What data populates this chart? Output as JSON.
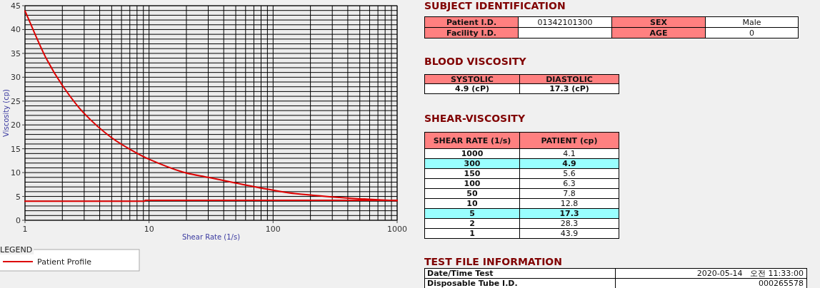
{
  "chart_data": [
    {
      "type": "line",
      "xlabel": "Shear Rate (1/s)",
      "ylabel": "Viscosity (cp)",
      "log": "x",
      "xlim": [
        1,
        1000
      ],
      "xticks": [
        1,
        10,
        100,
        1000
      ],
      "ylim": [
        0,
        45
      ],
      "yticks": [
        0,
        5,
        10,
        15,
        20,
        25,
        30,
        35,
        40,
        45
      ],
      "grid": true,
      "legend": "bottom left",
      "legend_title": "LEGEND",
      "series": [
        {
          "name": "Patient Profile",
          "color": "#dd0000",
          "x": [
            1,
            1.5,
            2,
            3,
            5,
            7,
            10,
            20,
            30,
            50,
            100,
            150,
            300,
            500,
            1000
          ],
          "values": [
            43.9,
            33.7,
            28.3,
            22.4,
            17.3,
            14.9,
            12.8,
            9.9,
            9.0,
            7.8,
            6.3,
            5.6,
            4.9,
            4.5,
            4.1
          ]
        },
        {
          "color": "#dd0000",
          "x": [
            1,
            9.2,
            9.3,
            1000
          ],
          "values": [
            4.0,
            4.0,
            4.2,
            4.2
          ]
        }
      ]
    },
    {
      "type": "other",
      "title": "SUBJECT IDENTIFICATION",
      "annotations": [
        "Patient I.D.",
        "01342101300",
        "SEX",
        "Male",
        "Facility I.D.",
        "AGE",
        "0"
      ]
    },
    {
      "type": "other",
      "title": "BLOOD VISCOSITY",
      "annotations": [
        "SYSTOLIC",
        "DIASTOLIC",
        "4.9 (cP)",
        "17.3 (cP)"
      ]
    },
    {
      "type": "other",
      "title": "SHEAR-VISCOSITY",
      "annotations": [
        "SHEAR RATE (1/s)",
        "PATIENT (cp)",
        "1000",
        "4.1",
        "300",
        "4.9",
        "150",
        "5.6",
        "100",
        "6.3",
        "50",
        "7.8",
        "10",
        "12.8",
        "5",
        "17.3",
        "2",
        "28.3",
        "1",
        "43.9"
      ]
    },
    {
      "type": "other",
      "title": "TEST FILE INFORMATION",
      "annotations": [
        "Date/Time Test",
        "2020-05-14   오전 11:33:00",
        "Disposable Tube I.D.",
        "000265578"
      ]
    }
  ]
}
